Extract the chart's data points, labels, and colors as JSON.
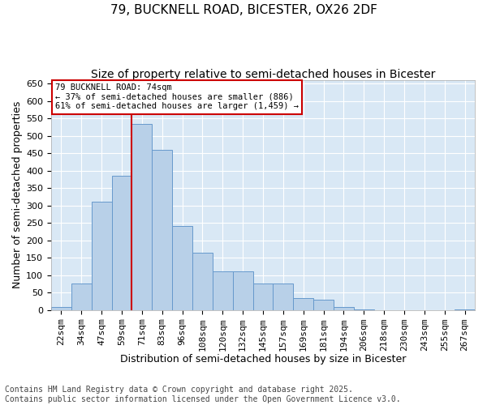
{
  "title_line1": "79, BUCKNELL ROAD, BICESTER, OX26 2DF",
  "title_line2": "Size of property relative to semi-detached houses in Bicester",
  "xlabel": "Distribution of semi-detached houses by size in Bicester",
  "ylabel": "Number of semi-detached properties",
  "categories": [
    "22sqm",
    "34sqm",
    "47sqm",
    "59sqm",
    "71sqm",
    "83sqm",
    "96sqm",
    "108sqm",
    "120sqm",
    "132sqm",
    "145sqm",
    "157sqm",
    "169sqm",
    "181sqm",
    "194sqm",
    "206sqm",
    "218sqm",
    "230sqm",
    "243sqm",
    "255sqm",
    "267sqm"
  ],
  "values": [
    8,
    75,
    310,
    385,
    535,
    460,
    240,
    165,
    110,
    110,
    75,
    75,
    35,
    30,
    8,
    2,
    0,
    0,
    0,
    0,
    1
  ],
  "bar_color": "#b8d0e8",
  "bar_edge_color": "#6699cc",
  "vline_x_index": 4,
  "vline_color": "#cc0000",
  "annotation_text": "79 BUCKNELL ROAD: 74sqm\n← 37% of semi-detached houses are smaller (886)\n61% of semi-detached houses are larger (1,459) →",
  "annotation_box_facecolor": "white",
  "annotation_box_edgecolor": "#cc0000",
  "ylim": [
    0,
    660
  ],
  "yticks": [
    0,
    50,
    100,
    150,
    200,
    250,
    300,
    350,
    400,
    450,
    500,
    550,
    600,
    650
  ],
  "background_color": "#d9e8f5",
  "footer_text": "Contains HM Land Registry data © Crown copyright and database right 2025.\nContains public sector information licensed under the Open Government Licence v3.0.",
  "title_fontsize": 11,
  "subtitle_fontsize": 10,
  "axis_label_fontsize": 9,
  "tick_fontsize": 8,
  "footer_fontsize": 7
}
